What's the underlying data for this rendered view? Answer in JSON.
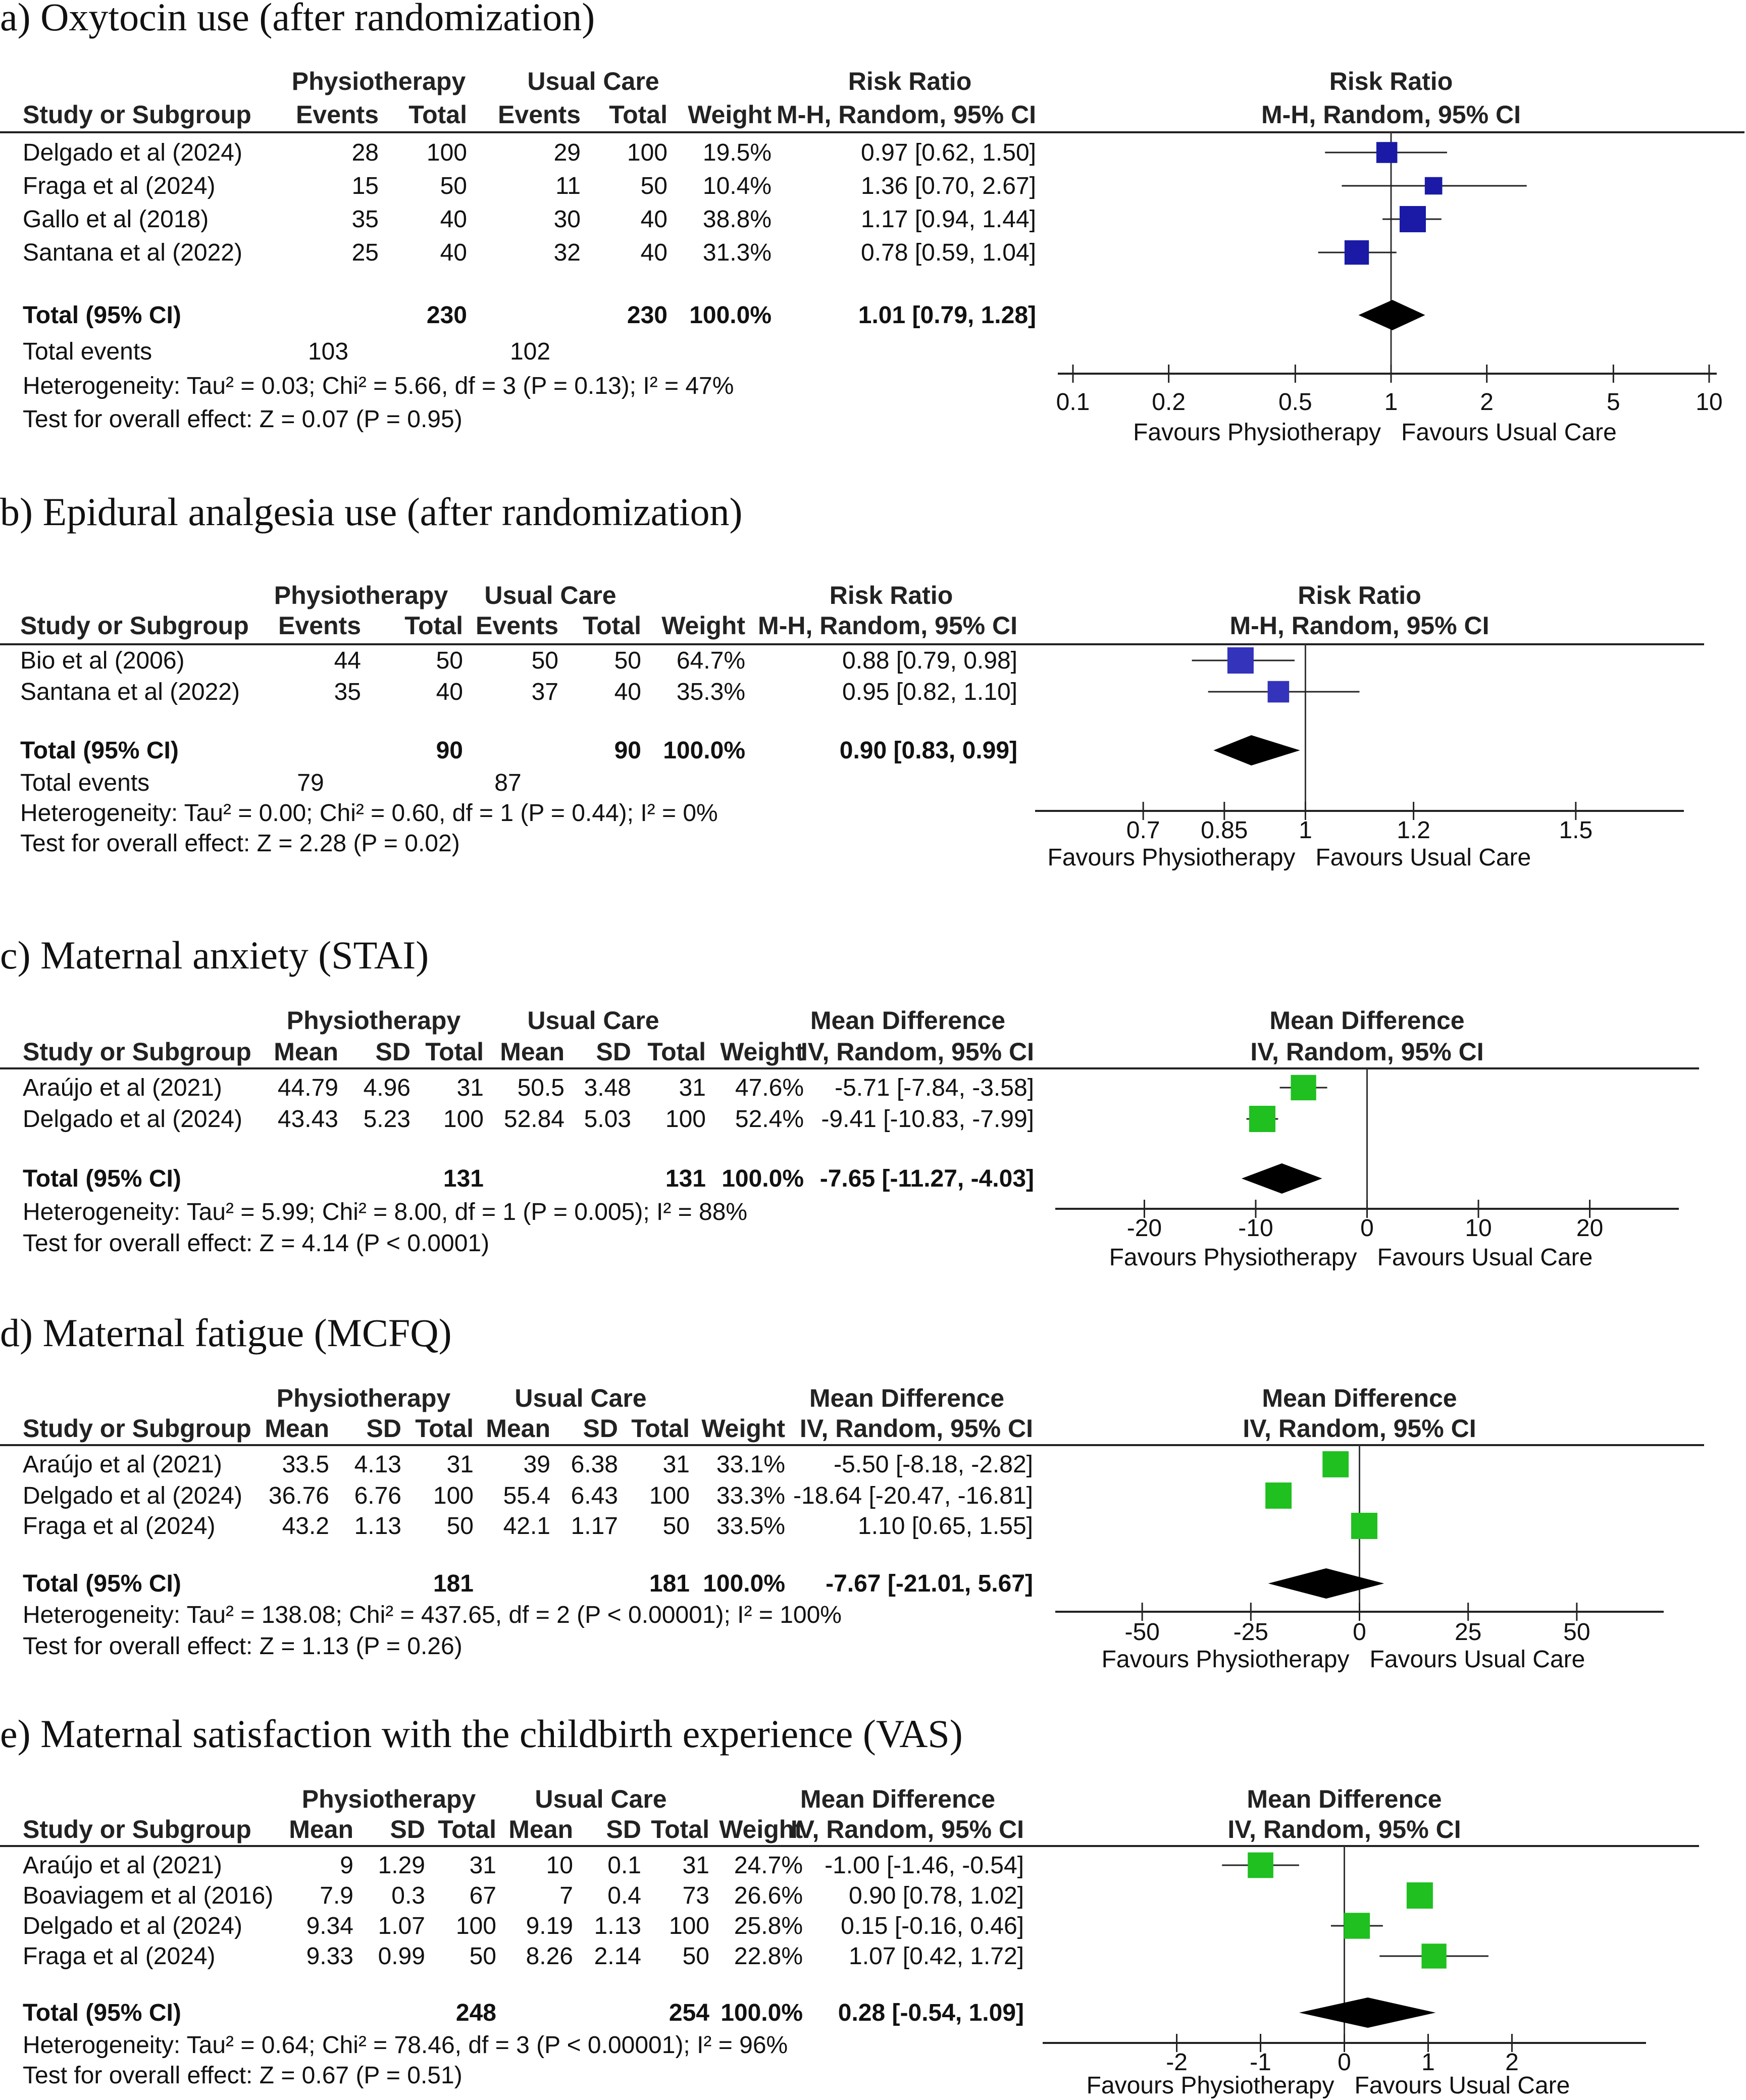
{
  "chart_data": [
    {
      "type": "forest",
      "title": "a) Oxytocin use (after randomization)",
      "measure": "Risk Ratio",
      "method": "M-H, Random, 95% CI",
      "group_headers": [
        "Physiotherapy",
        "Usual Care"
      ],
      "columns": [
        "Study or Subgroup",
        "Events",
        "Total",
        "Events",
        "Total",
        "Weight",
        "M-H, Random, 95% CI"
      ],
      "rows": [
        {
          "study": "Delgado et al (2024)",
          "cells": [
            "28",
            "100",
            "29",
            "100",
            "19.5%"
          ],
          "ci_text": "0.97 [0.62, 1.50]",
          "est": 0.97,
          "lo": 0.62,
          "hi": 1.5,
          "weight": 19.5
        },
        {
          "study": "Fraga et al (2024)",
          "cells": [
            "15",
            "50",
            "11",
            "50",
            "10.4%"
          ],
          "ci_text": "1.36 [0.70, 2.67]",
          "est": 1.36,
          "lo": 0.7,
          "hi": 2.67,
          "weight": 10.4
        },
        {
          "study": "Gallo et al (2018)",
          "cells": [
            "35",
            "40",
            "30",
            "40",
            "38.8%"
          ],
          "ci_text": "1.17 [0.94, 1.44]",
          "est": 1.17,
          "lo": 0.94,
          "hi": 1.44,
          "weight": 38.8
        },
        {
          "study": "Santana et al (2022)",
          "cells": [
            "25",
            "40",
            "32",
            "40",
            "31.3%"
          ],
          "ci_text": "0.78 [0.59, 1.04]",
          "est": 0.78,
          "lo": 0.59,
          "hi": 1.04,
          "weight": 31.3
        }
      ],
      "total": {
        "label": "Total (95% CI)",
        "cells": [
          "",
          "230",
          "",
          "230",
          "100.0%"
        ],
        "ci_text": "1.01 [0.79, 1.28]",
        "est": 1.01,
        "lo": 0.79,
        "hi": 1.28
      },
      "events": {
        "label": "Total events",
        "cells": [
          "103",
          "",
          "102",
          "",
          ""
        ]
      },
      "heterogeneity": "Heterogeneity: Tau² = 0.03; Chi² = 5.66, df = 3 (P = 0.13); I² = 47%",
      "overall": "Test for overall effect: Z = 0.07 (P = 0.95)",
      "scale": "log",
      "axis_range": [
        0.1,
        10
      ],
      "ticks": [
        0.1,
        0.2,
        0.5,
        1,
        2,
        5,
        10
      ],
      "tick_labels": [
        "0.1",
        "0.2",
        "0.5",
        "1",
        "2",
        "5",
        "10"
      ],
      "favours_left": "Favours Physiotherapy",
      "favours_right": "Favours Usual Care",
      "marker_color": "#1a1aa6",
      "dense": false
    },
    {
      "type": "forest",
      "title": "b) Epidural analgesia use (after randomization)",
      "measure": "Risk Ratio",
      "method": "M-H, Random, 95% CI",
      "group_headers": [
        "Physiotherapy",
        "Usual Care"
      ],
      "columns": [
        "Study or Subgroup",
        "Events",
        "Total",
        "Events",
        "Total",
        "Weight",
        "M-H, Random, 95% CI"
      ],
      "rows": [
        {
          "study": "Bio et al (2006)",
          "cells": [
            "44",
            "50",
            "50",
            "50",
            "64.7%"
          ],
          "ci_text": "0.88 [0.79, 0.98]",
          "est": 0.88,
          "lo": 0.79,
          "hi": 0.98,
          "weight": 64.7
        },
        {
          "study": "Santana et al (2022)",
          "cells": [
            "35",
            "40",
            "37",
            "40",
            "35.3%"
          ],
          "ci_text": "0.95 [0.82, 1.10]",
          "est": 0.95,
          "lo": 0.82,
          "hi": 1.1,
          "weight": 35.3
        }
      ],
      "total": {
        "label": "Total (95% CI)",
        "cells": [
          "",
          "90",
          "",
          "90",
          "100.0%"
        ],
        "ci_text": "0.90 [0.83, 0.99]",
        "est": 0.9,
        "lo": 0.83,
        "hi": 0.99
      },
      "events": {
        "label": "Total events",
        "cells": [
          "79",
          "",
          "87",
          "",
          ""
        ]
      },
      "heterogeneity": "Heterogeneity: Tau² = 0.00; Chi² = 0.60, df = 1 (P = 0.44); I² = 0%",
      "overall": "Test for overall effect: Z = 2.28 (P = 0.02)",
      "scale": "linear",
      "axis_range": [
        0.5,
        1.7
      ],
      "ticks": [
        0.7,
        0.85,
        1,
        1.2,
        1.5
      ],
      "tick_labels": [
        "0.7",
        "0.85",
        "1",
        "1.2",
        "1.5"
      ],
      "favours_left": "Favours Physiotherapy",
      "favours_right": "Favours Usual Care",
      "marker_color": "#3333bb",
      "dense": true
    },
    {
      "type": "forest",
      "title": "c) Maternal anxiety (STAI)",
      "measure": "Mean Difference",
      "method": "IV, Random, 95% CI",
      "group_headers": [
        "Physiotherapy",
        "Usual Care"
      ],
      "columns": [
        "Study or Subgroup",
        "Mean",
        "SD",
        "Total",
        "Mean",
        "SD",
        "Total",
        "Weight",
        "IV, Random, 95% CI"
      ],
      "rows": [
        {
          "study": "Araújo et al (2021)",
          "cells": [
            "44.79",
            "4.96",
            "31",
            "50.5",
            "3.48",
            "31",
            "47.6%"
          ],
          "ci_text": "-5.71 [-7.84, -3.58]",
          "est": -5.71,
          "lo": -7.84,
          "hi": -3.58,
          "weight": 47.6
        },
        {
          "study": "Delgado et al (2024)",
          "cells": [
            "43.43",
            "5.23",
            "100",
            "52.84",
            "5.03",
            "100",
            "52.4%"
          ],
          "ci_text": "-9.41 [-10.83, -7.99]",
          "est": -9.41,
          "lo": -10.83,
          "hi": -7.99,
          "weight": 52.4
        }
      ],
      "total": {
        "label": "Total (95% CI)",
        "cells": [
          "",
          "",
          "131",
          "",
          "",
          "131",
          "100.0%"
        ],
        "ci_text": "-7.65 [-11.27, -4.03]",
        "est": -7.65,
        "lo": -11.27,
        "hi": -4.03
      },
      "heterogeneity": "Heterogeneity: Tau² = 5.99; Chi² = 8.00, df = 1 (P = 0.005); I² = 88%",
      "overall": "Test for overall effect: Z = 4.14 (P < 0.0001)",
      "scale": "linear",
      "axis_range": [
        -28,
        28
      ],
      "ticks": [
        -20,
        -10,
        0,
        10,
        20
      ],
      "tick_labels": [
        "-20",
        "-10",
        "0",
        "10",
        "20"
      ],
      "favours_left": "Favours Physiotherapy",
      "favours_right": "Favours Usual Care",
      "marker_color": "#1fc01f",
      "dense": false
    },
    {
      "type": "forest",
      "title": "d) Maternal fatigue (MCFQ)",
      "measure": "Mean Difference",
      "method": "IV, Random, 95% CI",
      "group_headers": [
        "Physiotherapy",
        "Usual Care"
      ],
      "columns": [
        "Study or Subgroup",
        "Mean",
        "SD",
        "Total",
        "Mean",
        "SD",
        "Total",
        "Weight",
        "IV, Random, 95% CI"
      ],
      "rows": [
        {
          "study": "Araújo et al (2021)",
          "cells": [
            "33.5",
            "4.13",
            "31",
            "39",
            "6.38",
            "31",
            "33.1%"
          ],
          "ci_text": "-5.50 [-8.18, -2.82]",
          "est": -5.5,
          "lo": -8.18,
          "hi": -2.82,
          "weight": 33.1
        },
        {
          "study": "Delgado et al (2024)",
          "cells": [
            "36.76",
            "6.76",
            "100",
            "55.4",
            "6.43",
            "100",
            "33.3%"
          ],
          "ci_text": "-18.64 [-20.47, -16.81]",
          "est": -18.64,
          "lo": -20.47,
          "hi": -16.81,
          "weight": 33.3
        },
        {
          "study": "Fraga et al (2024)",
          "cells": [
            "43.2",
            "1.13",
            "50",
            "42.1",
            "1.17",
            "50",
            "33.5%"
          ],
          "ci_text": "1.10 [0.65, 1.55]",
          "est": 1.1,
          "lo": 0.65,
          "hi": 1.55,
          "weight": 33.5
        }
      ],
      "total": {
        "label": "Total (95% CI)",
        "cells": [
          "",
          "",
          "181",
          "",
          "",
          "181",
          "100.0%"
        ],
        "ci_text": "-7.67 [-21.01, 5.67]",
        "est": -7.67,
        "lo": -21.01,
        "hi": 5.67
      },
      "heterogeneity": "Heterogeneity: Tau² = 138.08; Chi² = 437.65, df = 2 (P < 0.00001); I² = 100%",
      "overall": "Test for overall effect: Z = 1.13 (P = 0.26)",
      "scale": "linear",
      "axis_range": [
        -70,
        70
      ],
      "ticks": [
        -50,
        -25,
        0,
        25,
        50
      ],
      "tick_labels": [
        "-50",
        "-25",
        "0",
        "25",
        "50"
      ],
      "favours_left": "Favours Physiotherapy",
      "favours_right": "Favours Usual Care",
      "marker_color": "#1fc01f",
      "dense": false
    },
    {
      "type": "forest",
      "title": "e) Maternal satisfaction with the childbirth experience (VAS)",
      "measure": "Mean Difference",
      "method": "IV, Random, 95% CI",
      "group_headers": [
        "Physiotherapy",
        "Usual Care"
      ],
      "columns": [
        "Study or Subgroup",
        "Mean",
        "SD",
        "Total",
        "Mean",
        "SD",
        "Total",
        "Weight",
        "IV, Random, 95% CI"
      ],
      "rows": [
        {
          "study": "Araújo et al (2021)",
          "cells": [
            "9",
            "1.29",
            "31",
            "10",
            "0.1",
            "31",
            "24.7%"
          ],
          "ci_text": "-1.00 [-1.46, -0.54]",
          "est": -1.0,
          "lo": -1.46,
          "hi": -0.54,
          "weight": 24.7
        },
        {
          "study": "Boaviagem et al (2016)",
          "cells": [
            "7.9",
            "0.3",
            "67",
            "7",
            "0.4",
            "73",
            "26.6%"
          ],
          "ci_text": "0.90 [0.78, 1.02]",
          "est": 0.9,
          "lo": 0.78,
          "hi": 1.02,
          "weight": 26.6
        },
        {
          "study": "Delgado et al (2024)",
          "cells": [
            "9.34",
            "1.07",
            "100",
            "9.19",
            "1.13",
            "100",
            "25.8%"
          ],
          "ci_text": "0.15 [-0.16, 0.46]",
          "est": 0.15,
          "lo": -0.16,
          "hi": 0.46,
          "weight": 25.8
        },
        {
          "study": "Fraga et al (2024)",
          "cells": [
            "9.33",
            "0.99",
            "50",
            "8.26",
            "2.14",
            "50",
            "22.8%"
          ],
          "ci_text": "1.07 [0.42, 1.72]",
          "est": 1.07,
          "lo": 0.42,
          "hi": 1.72,
          "weight": 22.8
        }
      ],
      "total": {
        "label": "Total (95% CI)",
        "cells": [
          "",
          "",
          "248",
          "",
          "",
          "254",
          "100.0%"
        ],
        "ci_text": "0.28 [-0.54, 1.09]",
        "est": 0.28,
        "lo": -0.54,
        "hi": 1.09
      },
      "heterogeneity": "Heterogeneity: Tau² = 0.64; Chi² = 78.46, df = 3 (P < 0.00001); I² = 96%",
      "overall": "Test for overall effect: Z = 0.67 (P = 0.51)",
      "scale": "linear",
      "axis_range": [
        -3.6,
        3.6
      ],
      "ticks": [
        -2,
        -1,
        0,
        1,
        2
      ],
      "tick_labels": [
        "-2",
        "-1",
        "0",
        "1",
        "2"
      ],
      "favours_left": "Favours Physiotherapy",
      "favours_right": "Favours Usual Care",
      "marker_color": "#1fc01f",
      "dense": false
    }
  ]
}
